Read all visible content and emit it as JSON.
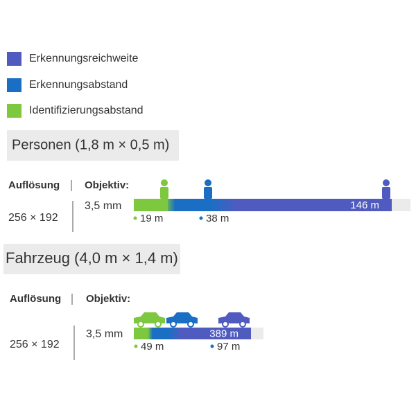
{
  "legend": [
    {
      "label": "Erkennungsreichweite",
      "color": "#4f5bbf"
    },
    {
      "label": "Erkennungsabstand",
      "color": "#1a6fc4"
    },
    {
      "label": "Identifizierungsabstand",
      "color": "#7dc83e"
    }
  ],
  "sections": [
    {
      "title": "Personen (1,8 m × 0,5 m)",
      "resolution_header": "Auflösung",
      "lens_header": "Objektiv:",
      "resolution": "256 × 192",
      "lens": "3,5 mm",
      "identification": "19 m",
      "detection": "38 m",
      "range": "146 m"
    },
    {
      "title": "Fahrzeug (4,0 m × 1,4 m)",
      "resolution_header": "Auflösung",
      "lens_header": "Objektiv:",
      "resolution": "256 × 192",
      "lens": "3,5 mm",
      "identification": "49 m",
      "detection": "97 m",
      "range": "389 m"
    }
  ]
}
